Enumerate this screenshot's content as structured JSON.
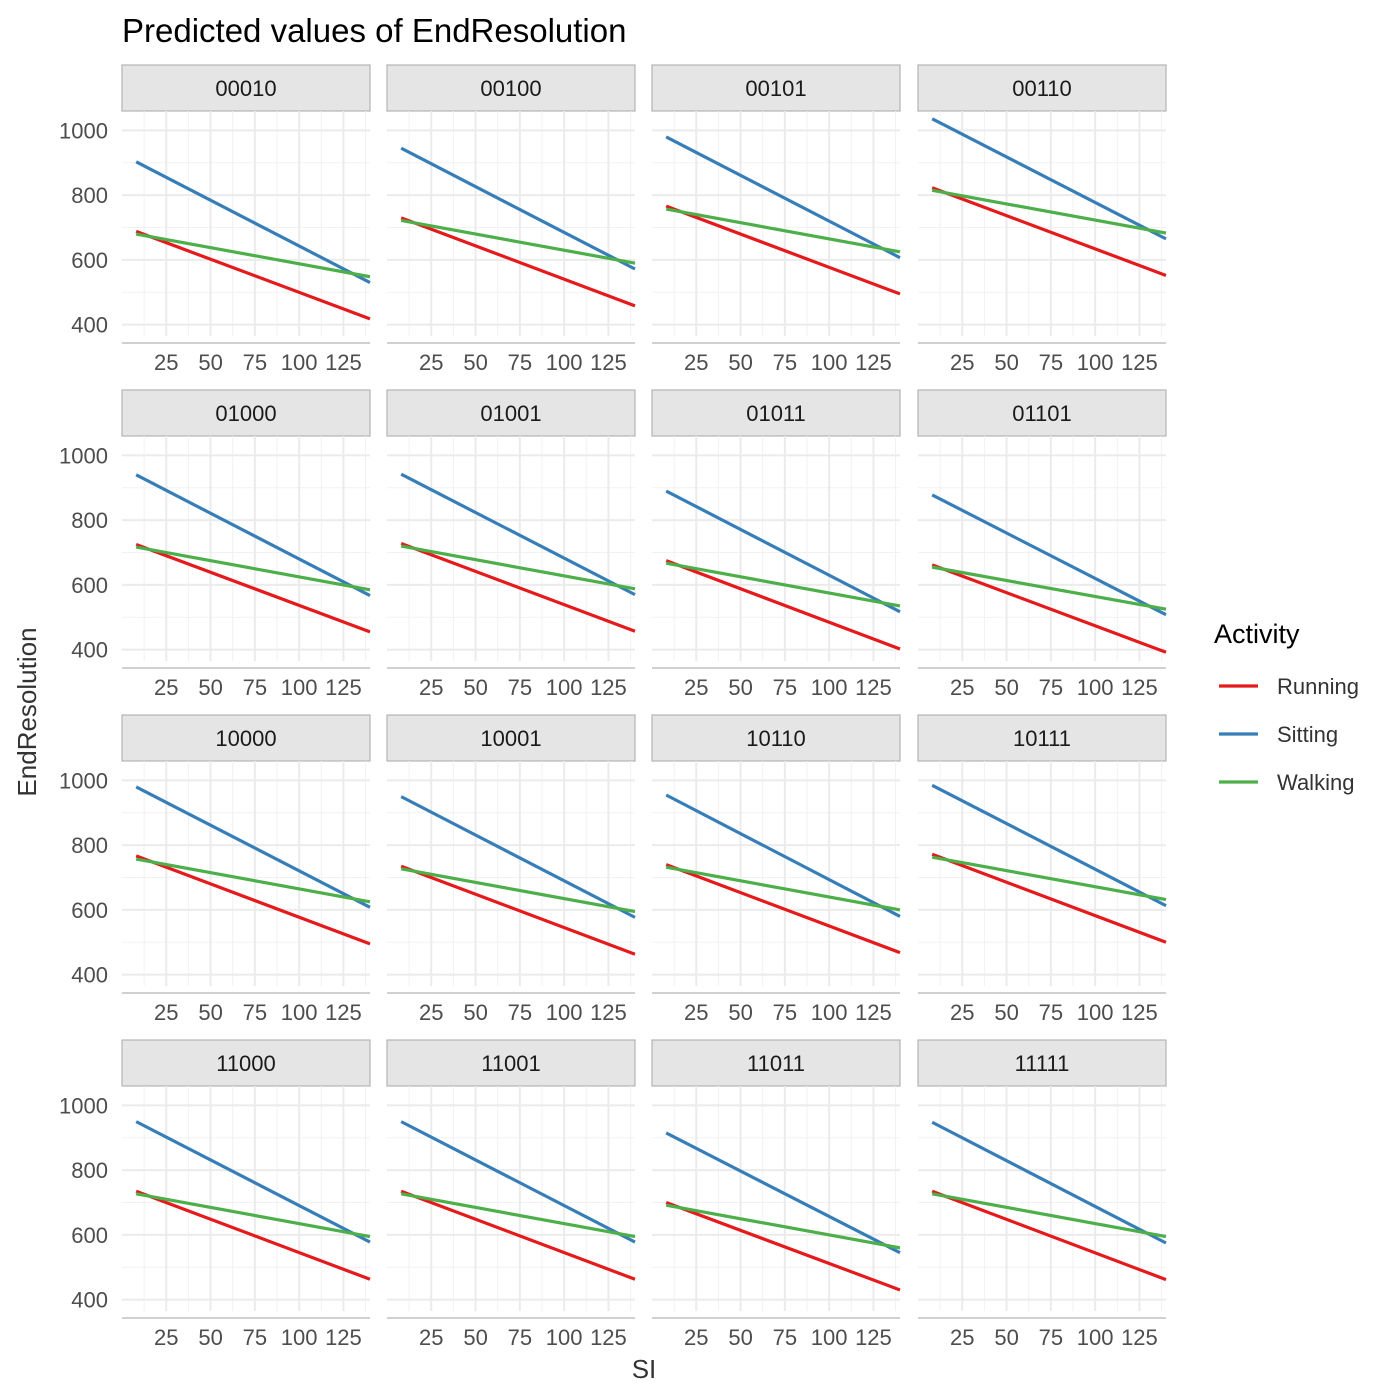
{
  "chart_data": {
    "type": "line",
    "title": "Predicted values of EndResolution",
    "xlabel": "SI",
    "ylabel": "EndResolution",
    "x_ticks": [
      25,
      50,
      75,
      100,
      125
    ],
    "y_ticks": [
      400,
      600,
      800,
      1000
    ],
    "xlim": [
      0,
      140
    ],
    "ylim": [
      365,
      1060
    ],
    "x_range": [
      8,
      140
    ],
    "grid": true,
    "legend": {
      "title": "Activity",
      "position": "right",
      "entries": [
        {
          "name": "Running",
          "color": "#e41a1c"
        },
        {
          "name": "Sitting",
          "color": "#377eb8"
        },
        {
          "name": "Walking",
          "color": "#4daf4a"
        }
      ]
    },
    "panels": [
      {
        "label": "00010",
        "series": [
          {
            "name": "Running",
            "values": [
              688,
              418
            ]
          },
          {
            "name": "Sitting",
            "values": [
              903,
              530
            ]
          },
          {
            "name": "Walking",
            "values": [
              680,
              548
            ]
          }
        ]
      },
      {
        "label": "00100",
        "series": [
          {
            "name": "Running",
            "values": [
              730,
              458
            ]
          },
          {
            "name": "Sitting",
            "values": [
              945,
              572
            ]
          },
          {
            "name": "Walking",
            "values": [
              722,
              590
            ]
          }
        ]
      },
      {
        "label": "00101",
        "series": [
          {
            "name": "Running",
            "values": [
              766,
              495
            ]
          },
          {
            "name": "Sitting",
            "values": [
              980,
              607
            ]
          },
          {
            "name": "Walking",
            "values": [
              757,
              625
            ]
          }
        ]
      },
      {
        "label": "00110",
        "series": [
          {
            "name": "Running",
            "values": [
              823,
              552
            ]
          },
          {
            "name": "Sitting",
            "values": [
              1036,
              665
            ]
          },
          {
            "name": "Walking",
            "values": [
              815,
              683
            ]
          }
        ]
      },
      {
        "label": "01000",
        "series": [
          {
            "name": "Running",
            "values": [
              725,
              455
            ]
          },
          {
            "name": "Sitting",
            "values": [
              940,
              567
            ]
          },
          {
            "name": "Walking",
            "values": [
              717,
              585
            ]
          }
        ]
      },
      {
        "label": "01001",
        "series": [
          {
            "name": "Running",
            "values": [
              728,
              457
            ]
          },
          {
            "name": "Sitting",
            "values": [
              942,
              570
            ]
          },
          {
            "name": "Walking",
            "values": [
              720,
              588
            ]
          }
        ]
      },
      {
        "label": "01011",
        "series": [
          {
            "name": "Running",
            "values": [
              675,
              402
            ]
          },
          {
            "name": "Sitting",
            "values": [
              890,
              517
            ]
          },
          {
            "name": "Walking",
            "values": [
              667,
              535
            ]
          }
        ]
      },
      {
        "label": "01101",
        "series": [
          {
            "name": "Running",
            "values": [
              662,
              392
            ]
          },
          {
            "name": "Sitting",
            "values": [
              878,
              508
            ]
          },
          {
            "name": "Walking",
            "values": [
              655,
              525
            ]
          }
        ]
      },
      {
        "label": "10000",
        "series": [
          {
            "name": "Running",
            "values": [
              767,
              495
            ]
          },
          {
            "name": "Sitting",
            "values": [
              980,
              608
            ]
          },
          {
            "name": "Walking",
            "values": [
              757,
              625
            ]
          }
        ]
      },
      {
        "label": "10001",
        "series": [
          {
            "name": "Running",
            "values": [
              735,
              463
            ]
          },
          {
            "name": "Sitting",
            "values": [
              950,
              577
            ]
          },
          {
            "name": "Walking",
            "values": [
              727,
              595
            ]
          }
        ]
      },
      {
        "label": "10110",
        "series": [
          {
            "name": "Running",
            "values": [
              740,
              468
            ]
          },
          {
            "name": "Sitting",
            "values": [
              955,
              580
            ]
          },
          {
            "name": "Walking",
            "values": [
              732,
              600
            ]
          }
        ]
      },
      {
        "label": "10111",
        "series": [
          {
            "name": "Running",
            "values": [
              772,
              500
            ]
          },
          {
            "name": "Sitting",
            "values": [
              985,
              613
            ]
          },
          {
            "name": "Walking",
            "values": [
              763,
              632
            ]
          }
        ]
      },
      {
        "label": "11000",
        "series": [
          {
            "name": "Running",
            "values": [
              735,
              463
            ]
          },
          {
            "name": "Sitting",
            "values": [
              950,
              578
            ]
          },
          {
            "name": "Walking",
            "values": [
              727,
              595
            ]
          }
        ]
      },
      {
        "label": "11001",
        "series": [
          {
            "name": "Running",
            "values": [
              735,
              463
            ]
          },
          {
            "name": "Sitting",
            "values": [
              950,
              578
            ]
          },
          {
            "name": "Walking",
            "values": [
              727,
              595
            ]
          }
        ]
      },
      {
        "label": "11011",
        "series": [
          {
            "name": "Running",
            "values": [
              700,
              430
            ]
          },
          {
            "name": "Sitting",
            "values": [
              915,
              545
            ]
          },
          {
            "name": "Walking",
            "values": [
              692,
              560
            ]
          }
        ]
      },
      {
        "label": "11111",
        "series": [
          {
            "name": "Running",
            "values": [
              735,
              462
            ]
          },
          {
            "name": "Sitting",
            "values": [
              948,
              575
            ]
          },
          {
            "name": "Walking",
            "values": [
              727,
              595
            ]
          }
        ]
      }
    ]
  }
}
